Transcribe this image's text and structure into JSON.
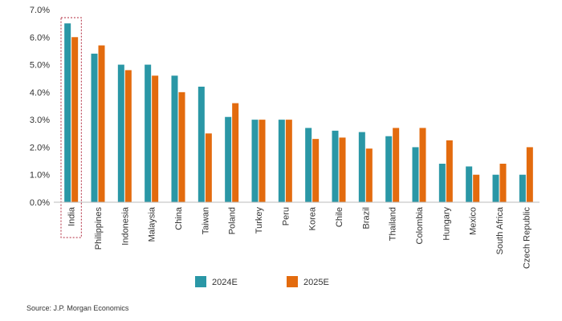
{
  "chart_data": {
    "type": "bar",
    "categories": [
      "India",
      "Philippines",
      "Indonesia",
      "Malaysia",
      "China",
      "Taiwan",
      "Poland",
      "Turkey",
      "Peru",
      "Korea",
      "Chile",
      "Brazil",
      "Thailand",
      "Colombia",
      "Hungary",
      "Mexico",
      "South Africa",
      "Czech Republic"
    ],
    "series": [
      {
        "name": "2024E",
        "color": "#2a97a6",
        "values": [
          6.5,
          5.4,
          5.0,
          5.0,
          4.6,
          4.2,
          3.1,
          3.0,
          3.0,
          2.7,
          2.6,
          2.55,
          2.4,
          2.0,
          1.4,
          1.3,
          1.0,
          1.0
        ]
      },
      {
        "name": "2025E",
        "color": "#e36b0e",
        "values": [
          6.0,
          5.7,
          4.8,
          4.6,
          4.0,
          2.5,
          3.6,
          3.0,
          3.0,
          2.3,
          2.35,
          1.95,
          2.7,
          2.7,
          2.25,
          1.0,
          1.4,
          2.0
        ]
      }
    ],
    "yticks": [
      "0.0%",
      "1.0%",
      "2.0%",
      "3.0%",
      "4.0%",
      "5.0%",
      "6.0%",
      "7.0%"
    ],
    "ylim": [
      0,
      7
    ],
    "highlighted_category": "India",
    "highlight_color": "#b0283d",
    "grid": false,
    "legend_position": "bottom-center",
    "xlabel": "",
    "ylabel": "",
    "title": ""
  },
  "source": "Source: J.P. Morgan Economics"
}
